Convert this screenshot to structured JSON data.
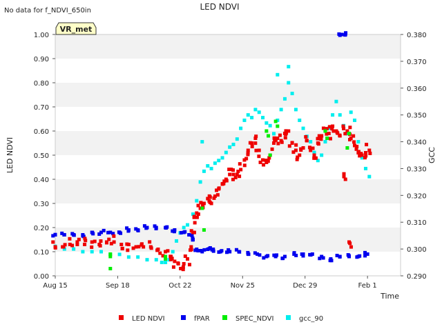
{
  "header": {
    "no_data_note": "No data for f_NDVI_650in",
    "title": "LED NDVI",
    "badge": "VR_met"
  },
  "chart_data": {
    "type": "scatter",
    "title": "LED NDVI",
    "xlabel": "Time",
    "ylabel_left": "LED NDVI",
    "ylabel_right": "GCC",
    "ylim_left": [
      0.0,
      1.0
    ],
    "ylim_right": [
      0.29,
      0.38
    ],
    "x_unit": "days since Aug 15",
    "xlim": [
      0,
      188
    ],
    "x_ticks": [
      {
        "label": "Aug 15",
        "day": 0
      },
      {
        "label": "Sep 18",
        "day": 34
      },
      {
        "label": "Oct 22",
        "day": 68
      },
      {
        "label": "Nov 25",
        "day": 102
      },
      {
        "label": "Dec 29",
        "day": 136
      },
      {
        "label": "Feb 1",
        "day": 170
      }
    ],
    "y_ticks_left": [
      "0.00",
      "0.10",
      "0.20",
      "0.30",
      "0.40",
      "0.50",
      "0.60",
      "0.70",
      "0.80",
      "0.90",
      "1.00"
    ],
    "y_ticks_right": [
      "0.290",
      "0.300",
      "0.310",
      "0.320",
      "0.330",
      "0.340",
      "0.350",
      "0.360",
      "0.370",
      "0.380"
    ],
    "legend_position": "bottom",
    "series": [
      {
        "name": "LED NDVI",
        "color": "#ee0000",
        "axis": "left",
        "points": [
          [
            0,
            0.12
          ],
          [
            4,
            0.12
          ],
          [
            8,
            0.13
          ],
          [
            12,
            0.13
          ],
          [
            16,
            0.13
          ],
          [
            20,
            0.14
          ],
          [
            24,
            0.13
          ],
          [
            28,
            0.14
          ],
          [
            32,
            0.14
          ],
          [
            36,
            0.13
          ],
          [
            40,
            0.13
          ],
          [
            44,
            0.12
          ],
          [
            48,
            0.12
          ],
          [
            52,
            0.12
          ],
          [
            56,
            0.11
          ],
          [
            60,
            0.1
          ],
          [
            63,
            0.08
          ],
          [
            65,
            0.06
          ],
          [
            67,
            0.05
          ],
          [
            70,
            0.05
          ],
          [
            72,
            0.07
          ],
          [
            74,
            0.12
          ],
          [
            75,
            0.18
          ],
          [
            76,
            0.22
          ],
          [
            77,
            0.26
          ],
          [
            79,
            0.28
          ],
          [
            81,
            0.3
          ],
          [
            83,
            0.32
          ],
          [
            85,
            0.3
          ],
          [
            87,
            0.33
          ],
          [
            89,
            0.36
          ],
          [
            91,
            0.38
          ],
          [
            93,
            0.4
          ],
          [
            95,
            0.42
          ],
          [
            97,
            0.42
          ],
          [
            99,
            0.42
          ],
          [
            101,
            0.44
          ],
          [
            103,
            0.48
          ],
          [
            105,
            0.52
          ],
          [
            107,
            0.55
          ],
          [
            109,
            0.57
          ],
          [
            111,
            0.52
          ],
          [
            113,
            0.48
          ],
          [
            115,
            0.47
          ],
          [
            117,
            0.5
          ],
          [
            119,
            0.55
          ],
          [
            121,
            0.57
          ],
          [
            123,
            0.56
          ],
          [
            125,
            0.59
          ],
          [
            127,
            0.6
          ],
          [
            129,
            0.55
          ],
          [
            131,
            0.52
          ],
          [
            133,
            0.5
          ],
          [
            135,
            0.53
          ],
          [
            137,
            0.56
          ],
          [
            139,
            0.52
          ],
          [
            141,
            0.5
          ],
          [
            143,
            0.55
          ],
          [
            145,
            0.58
          ],
          [
            147,
            0.6
          ],
          [
            149,
            0.59
          ],
          [
            151,
            0.62
          ],
          [
            153,
            0.6
          ],
          [
            155,
            0.58
          ],
          [
            157,
            0.61
          ],
          [
            159,
            0.6
          ],
          [
            161,
            0.57
          ],
          [
            163,
            0.54
          ],
          [
            165,
            0.51
          ],
          [
            167,
            0.5
          ],
          [
            169,
            0.51
          ],
          [
            171,
            0.52
          ],
          [
            158,
            0.4
          ],
          [
            160,
            0.14
          ]
        ]
      },
      {
        "name": "fPAR",
        "color": "#0000ee",
        "axis": "left",
        "points": [
          [
            0,
            0.17
          ],
          [
            5,
            0.17
          ],
          [
            10,
            0.17
          ],
          [
            15,
            0.17
          ],
          [
            20,
            0.18
          ],
          [
            25,
            0.18
          ],
          [
            30,
            0.18
          ],
          [
            35,
            0.18
          ],
          [
            40,
            0.19
          ],
          [
            45,
            0.19
          ],
          [
            50,
            0.2
          ],
          [
            55,
            0.2
          ],
          [
            60,
            0.2
          ],
          [
            65,
            0.19
          ],
          [
            70,
            0.18
          ],
          [
            73,
            0.17
          ],
          [
            75,
            0.15
          ],
          [
            77,
            0.11
          ],
          [
            80,
            0.1
          ],
          [
            83,
            0.11
          ],
          [
            86,
            0.11
          ],
          [
            90,
            0.1
          ],
          [
            95,
            0.1
          ],
          [
            100,
            0.1
          ],
          [
            105,
            0.09
          ],
          [
            110,
            0.09
          ],
          [
            115,
            0.08
          ],
          [
            120,
            0.08
          ],
          [
            125,
            0.08
          ],
          [
            130,
            0.09
          ],
          [
            135,
            0.09
          ],
          [
            140,
            0.09
          ],
          [
            145,
            0.08
          ],
          [
            150,
            0.07
          ],
          [
            155,
            0.08
          ],
          [
            160,
            0.08
          ],
          [
            165,
            0.08
          ],
          [
            170,
            0.09
          ],
          [
            156,
            1.0
          ],
          [
            158,
            1.0
          ]
        ]
      },
      {
        "name": "SPEC_NDVI",
        "color": "#00ee00",
        "axis": "left",
        "points": [
          [
            30,
            0.09
          ],
          [
            30,
            0.08
          ],
          [
            30,
            0.03
          ],
          [
            60,
            0.08
          ],
          [
            60,
            0.07
          ],
          [
            80,
            0.28
          ],
          [
            81,
            0.19
          ],
          [
            115,
            0.6
          ],
          [
            116,
            0.58
          ],
          [
            117,
            0.5
          ],
          [
            120,
            0.64
          ],
          [
            121,
            0.62
          ],
          [
            147,
            0.6
          ],
          [
            148,
            0.57
          ],
          [
            159,
            0.53
          ],
          [
            160,
            0.59
          ]
        ]
      },
      {
        "name": "gcc_90",
        "color": "#00eeee",
        "axis": "right",
        "points": [
          [
            0,
            0.301
          ],
          [
            5,
            0.3
          ],
          [
            10,
            0.3
          ],
          [
            15,
            0.299
          ],
          [
            20,
            0.299
          ],
          [
            25,
            0.299
          ],
          [
            30,
            0.298
          ],
          [
            35,
            0.298
          ],
          [
            40,
            0.297
          ],
          [
            45,
            0.297
          ],
          [
            50,
            0.296
          ],
          [
            55,
            0.296
          ],
          [
            58,
            0.295
          ],
          [
            60,
            0.295
          ],
          [
            62,
            0.296
          ],
          [
            64,
            0.299
          ],
          [
            66,
            0.303
          ],
          [
            68,
            0.306
          ],
          [
            70,
            0.308
          ],
          [
            72,
            0.309
          ],
          [
            75,
            0.313
          ],
          [
            77,
            0.318
          ],
          [
            79,
            0.325
          ],
          [
            81,
            0.329
          ],
          [
            83,
            0.331
          ],
          [
            85,
            0.33
          ],
          [
            87,
            0.332
          ],
          [
            89,
            0.333
          ],
          [
            91,
            0.334
          ],
          [
            93,
            0.336
          ],
          [
            95,
            0.338
          ],
          [
            97,
            0.339
          ],
          [
            99,
            0.341
          ],
          [
            101,
            0.345
          ],
          [
            103,
            0.348
          ],
          [
            105,
            0.35
          ],
          [
            107,
            0.349
          ],
          [
            109,
            0.352
          ],
          [
            111,
            0.351
          ],
          [
            113,
            0.349
          ],
          [
            115,
            0.347
          ],
          [
            117,
            0.346
          ],
          [
            119,
            0.343
          ],
          [
            121,
            0.348
          ],
          [
            123,
            0.352
          ],
          [
            125,
            0.356
          ],
          [
            127,
            0.362
          ],
          [
            129,
            0.358
          ],
          [
            131,
            0.352
          ],
          [
            133,
            0.348
          ],
          [
            135,
            0.345
          ],
          [
            137,
            0.342
          ],
          [
            139,
            0.34
          ],
          [
            141,
            0.336
          ],
          [
            143,
            0.333
          ],
          [
            145,
            0.335
          ],
          [
            147,
            0.34
          ],
          [
            149,
            0.345
          ],
          [
            151,
            0.35
          ],
          [
            153,
            0.355
          ],
          [
            155,
            0.35
          ],
          [
            157,
            0.346
          ],
          [
            159,
            0.343
          ],
          [
            161,
            0.351
          ],
          [
            163,
            0.348
          ],
          [
            165,
            0.34
          ],
          [
            167,
            0.334
          ],
          [
            169,
            0.33
          ],
          [
            171,
            0.327
          ],
          [
            80,
            0.34
          ],
          [
            121,
            0.365
          ],
          [
            127,
            0.368
          ]
        ]
      }
    ]
  }
}
